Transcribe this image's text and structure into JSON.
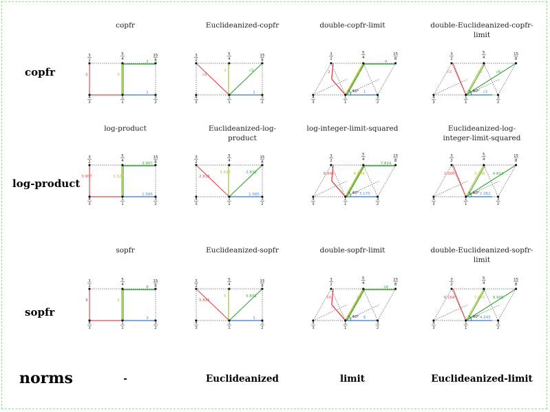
{
  "rows": [
    {
      "label": "copfr",
      "titles": [
        "copfr",
        "Euclideanized-copfr",
        "double-copfr-limit",
        "double-Euclideanized-copfr-limit"
      ],
      "values": [
        {
          "red": "2",
          "yellow": "3",
          "green": "2",
          "blue": "1"
        },
        {
          "red": "√2",
          "yellow": "3",
          "green": "√2",
          "blue": "1"
        },
        {
          "red": "2",
          "yellow": "3",
          "green": "4",
          "blue": "1"
        },
        {
          "red": "√2",
          "yellow": "√3",
          "green": "√6",
          "blue": "√2"
        }
      ]
    },
    {
      "label": "log-product",
      "titles": [
        "log-product",
        "Euclideanized-log-product",
        "log-integer-limit-squared",
        "Euclideanized-log-integer-limit-squared"
      ],
      "values": [
        {
          "red": "3.907",
          "yellow": "3.322",
          "green": "3.907",
          "blue": "1.585"
        },
        {
          "red": "2.833",
          "yellow": "3.322",
          "green": "2.833",
          "blue": "1.585"
        },
        {
          "red": "6.845",
          "yellow": "6.644",
          "green": "7.814",
          "blue": "3.170"
        },
        {
          "red": "2.906",
          "yellow": "3.286",
          "green": "4.814",
          "blue": "2.262"
        }
      ]
    },
    {
      "label": "sopfr",
      "titles": [
        "sopfr",
        "Euclideanized-sopfr",
        "double-sopfr-limit",
        "double-Euclideanized-sopfr-limit"
      ],
      "values": [
        {
          "red": "8",
          "yellow": "5",
          "green": "8",
          "blue": "3"
        },
        {
          "red": "5.831",
          "yellow": "5",
          "green": "5.831",
          "blue": "3"
        },
        {
          "red": "10",
          "yellow": "10",
          "green": "16",
          "blue": "6"
        },
        {
          "red": "6.164",
          "yellow": "7.071",
          "green": "9.900",
          "blue": "4.243"
        }
      ]
    }
  ],
  "norms": {
    "label": "norms",
    "columns": [
      "-",
      "Euclideanized",
      "limit",
      "Euclideanized-limit"
    ]
  },
  "fractions": {
    "tl": [
      "3",
      "2"
    ],
    "tc": [
      "5",
      "4"
    ],
    "tr": [
      "15",
      "8"
    ],
    "bl": [
      "4",
      "3"
    ],
    "bc": [
      "1",
      "1"
    ],
    "br": [
      "3",
      "2"
    ]
  },
  "angle_label": "60°",
  "colors": {
    "red": "#e24a4a",
    "yellow": "#b5c23a",
    "green": "#3aa63a",
    "blue": "#4a8fe2",
    "grid": "#555555"
  }
}
